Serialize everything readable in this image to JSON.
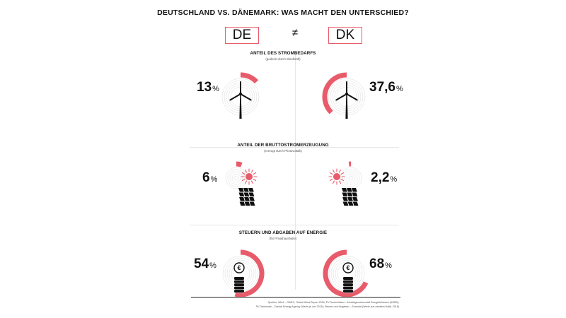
{
  "header": {
    "title": "DEUTSCHLAND VS. DÄNEMARK: WAS MACHT DEN UNTERSCHIED?",
    "left_country": "DE",
    "right_country": "DK",
    "neq_symbol": "≠"
  },
  "sections": [
    {
      "title": "ANTEIL DES STROMBEDARFS",
      "subtitle": "(gedeckt durch Windkraft)",
      "icon": "wind-turbine-icon",
      "de": {
        "value": "13",
        "unit": "%"
      },
      "dk": {
        "value": "37,6",
        "unit": "%"
      }
    },
    {
      "title": "ANTEIL DER BRUTTOSTROMERZEUGUNG",
      "subtitle": "(erzeugt durch Photovoltaik)",
      "icon": "solar-panel-sun-icon",
      "de": {
        "value": "6",
        "unit": "%"
      },
      "dk": {
        "value": "2,2",
        "unit": "%"
      }
    },
    {
      "title": "STEUERN UND ABGABEN AUF ENERGIE",
      "subtitle": "(für Privathaushalte)",
      "icon": "euro-coin-stack-icon",
      "de": {
        "value": "54",
        "unit": "%"
      },
      "dk": {
        "value": "68",
        "unit": "%"
      }
    }
  ],
  "sources": {
    "line1": "Quellen: Wind – GWEC, Global Wind Report 2016; PV Deutschland – Arbeitsgemeinschaft Energiebilanzen (AGEB);",
    "line2": "PV Dänemark – Danish Energy Agency (Werte je von 2015); Steuern und Abgaben – Eurostat (Werte aus zweitem Halbj. 2016)"
  },
  "colors": {
    "accent": "#e85b6b",
    "text": "#111111",
    "ring_guide": "#d9d9d9"
  },
  "chart_data": [
    {
      "type": "gauge",
      "title": "ANTEIL DES STROMBEDARFS",
      "series": [
        {
          "name": "DE",
          "value": 13,
          "unit": "%"
        },
        {
          "name": "DK",
          "value": 37.6,
          "unit": "%"
        }
      ]
    },
    {
      "type": "gauge",
      "title": "ANTEIL DER BRUTTOSTROMERZEUGUNG",
      "series": [
        {
          "name": "DE",
          "value": 6,
          "unit": "%"
        },
        {
          "name": "DK",
          "value": 2.2,
          "unit": "%"
        }
      ]
    },
    {
      "type": "gauge",
      "title": "STEUERN UND ABGABEN AUF ENERGIE",
      "series": [
        {
          "name": "DE",
          "value": 54,
          "unit": "%"
        },
        {
          "name": "DK",
          "value": 68,
          "unit": "%"
        }
      ]
    }
  ]
}
